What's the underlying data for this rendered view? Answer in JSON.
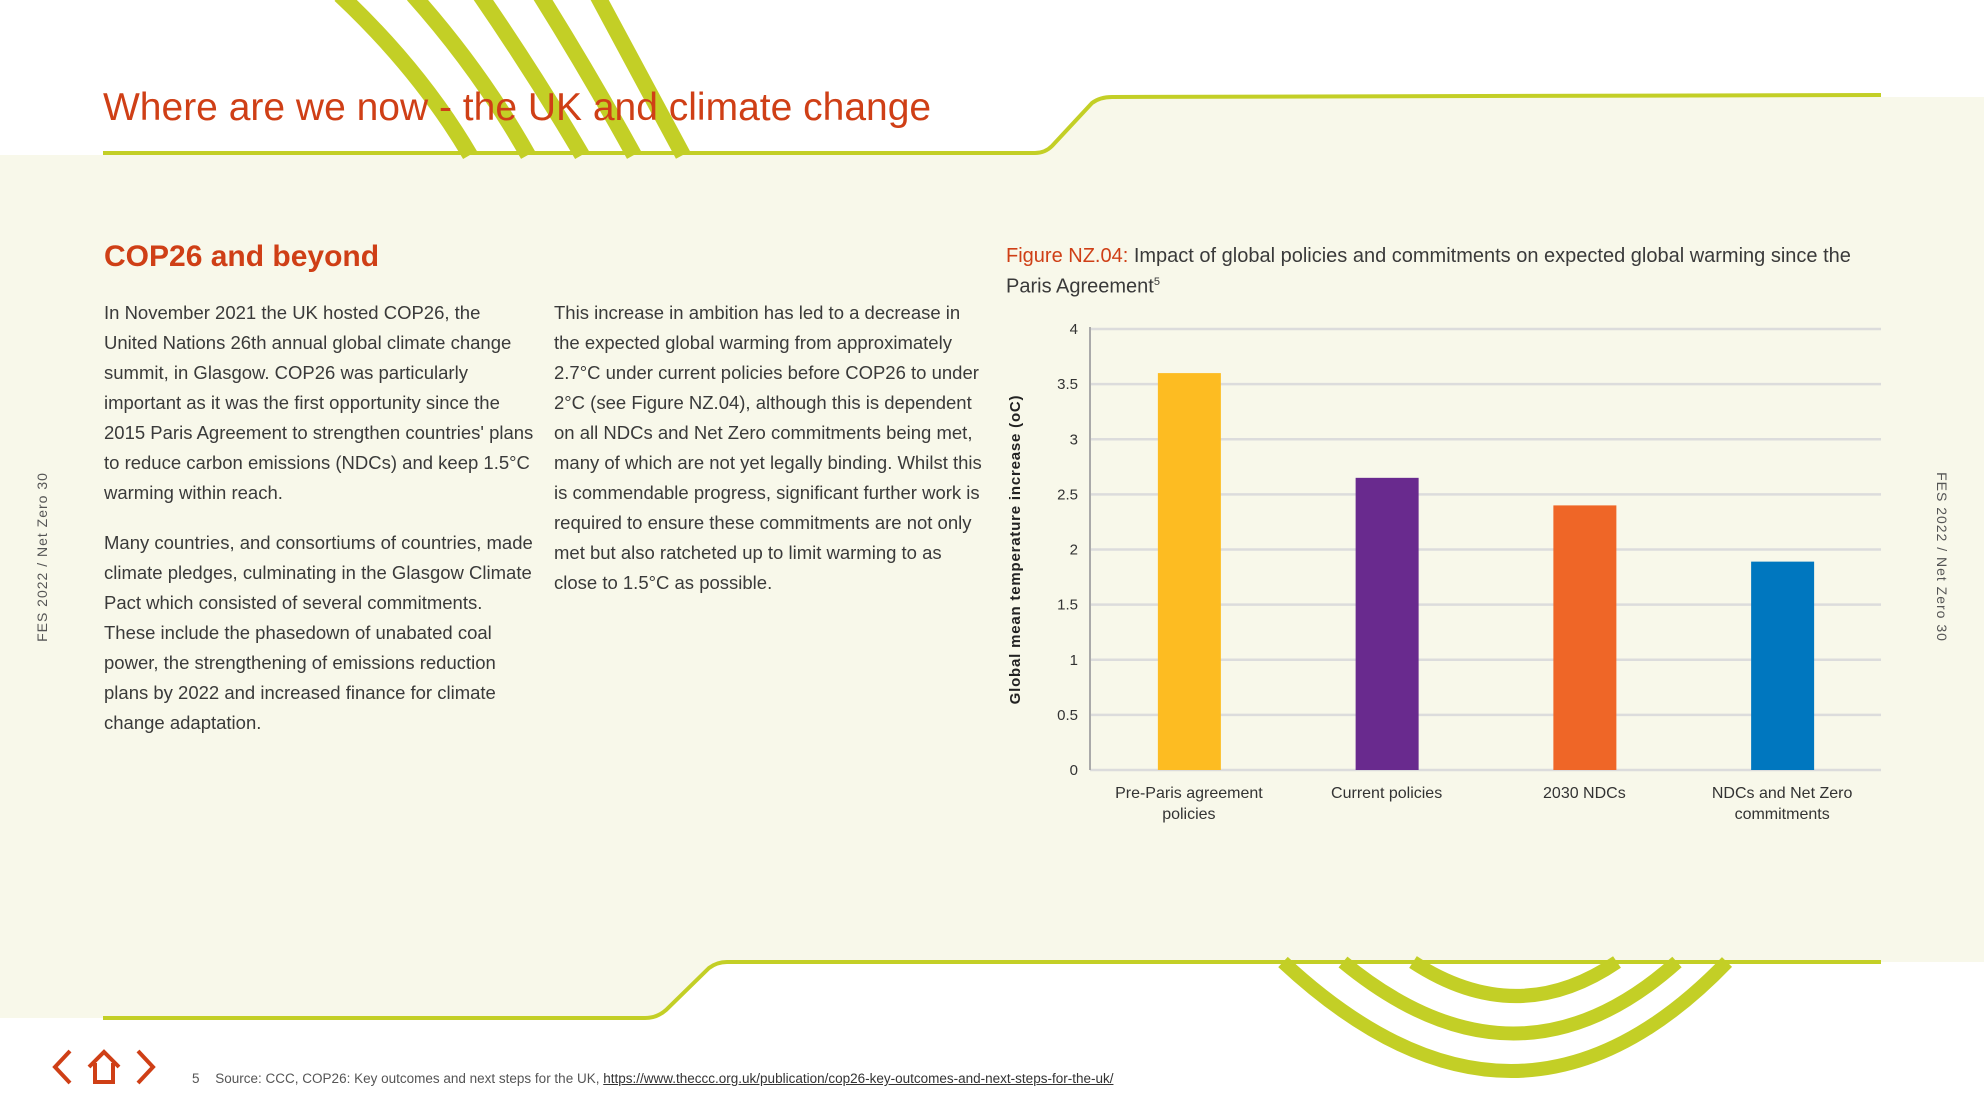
{
  "page": {
    "title": "Where are we now - the UK and climate change",
    "side_label": "FES 2022  /  Net Zero  30",
    "colors": {
      "accent": "#cf3f16",
      "green": "#c3cf26",
      "cream": "#f8f8ea"
    }
  },
  "section": {
    "heading": "COP26 and beyond",
    "col1": [
      "In November 2021 the UK hosted COP26, the United Nations 26th annual global climate change summit, in Glasgow. COP26 was particularly important as it was the first opportunity since the 2015 Paris Agreement to strengthen countries' plans to reduce carbon emissions (NDCs) and keep 1.5°C warming within reach.",
      "Many countries, and consortiums of countries, made climate pledges, culminating in the Glasgow Climate Pact which consisted of several commitments. These include the phasedown of unabated coal power, the strengthening of emissions reduction plans by 2022 and increased finance for climate change adaptation."
    ],
    "col2": [
      "This increase in ambition has led to a decrease in the expected global warming from approximately 2.7°C under current policies before COP26 to under 2°C (see Figure NZ.04), although this is dependent on all NDCs and Net Zero commitments being met, many of which are not yet legally binding. Whilst this is commendable progress, significant further work is required to ensure these commitments are not only met but also ratcheted up to limit warming to as close to 1.5°C as possible."
    ]
  },
  "figure": {
    "label": "Figure NZ.04:",
    "caption": "Impact of global policies and commitments on expected global warming since the Paris Agreement",
    "footnote_ref": "5"
  },
  "chart_data": {
    "type": "bar",
    "title": "Impact of global policies and commitments on expected global warming since the Paris Agreement",
    "xlabel": "",
    "ylabel": "Global mean temperature increase (oC)",
    "ylim": [
      0,
      4
    ],
    "yticks": [
      "0",
      "0.5",
      "1",
      "1.5",
      "2",
      "2.5",
      "3",
      "3.5",
      "4"
    ],
    "grid": true,
    "categories": [
      [
        "Pre-Paris agreement",
        "policies"
      ],
      [
        "Current policies"
      ],
      [
        "2030 NDCs"
      ],
      [
        "NDCs and Net Zero",
        "commitments"
      ]
    ],
    "values": [
      3.6,
      2.65,
      2.4,
      1.89
    ],
    "colors": [
      "#fdbc22",
      "#692a8e",
      "#ef6627",
      "#0077bf"
    ]
  },
  "footer": {
    "number": "5",
    "text": "Source: CCC, COP26: Key outcomes and next steps for the UK,",
    "link": "https://www.theccc.org.uk/publication/cop26-key-outcomes-and-next-steps-for-the-uk/"
  },
  "nav": {
    "prev": "previous-page",
    "home": "home",
    "next": "next-page"
  }
}
